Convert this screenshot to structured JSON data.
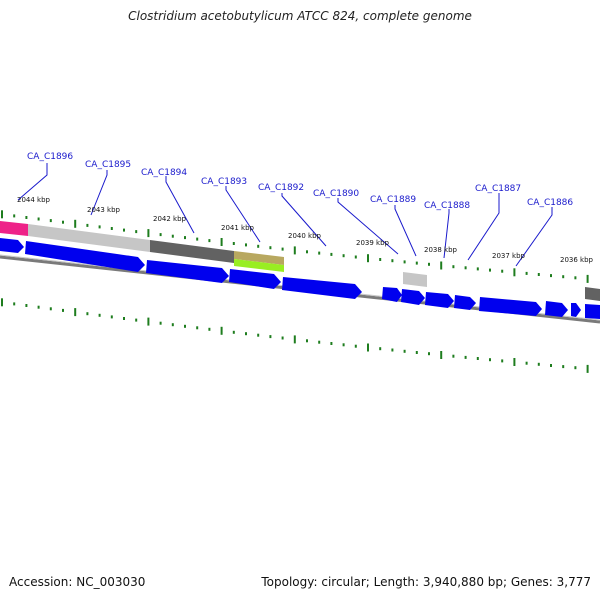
{
  "title": "Clostridium acetobutylicum ATCC 824, complete genome",
  "accession": "Accession: NC_003030",
  "summary": "Topology: circular; Length: 3,940,880 bp; Genes: 3,777",
  "kbp_labels": [
    "2044 kbp",
    "2043 kbp",
    "2042 kbp",
    "2041 kbp",
    "2040 kbp",
    "2039 kbp",
    "2038 kbp",
    "2037 kbp",
    "2036 kbp"
  ],
  "genes": [
    "CA_C1896",
    "CA_C1895",
    "CA_C1894",
    "CA_C1893",
    "CA_C1892",
    "CA_C1890",
    "CA_C1889",
    "CA_C1888",
    "CA_C1887",
    "CA_C1886"
  ],
  "colors": {
    "backbone": "#808080",
    "cds": "#0000ee",
    "tick": "#1e7d1e",
    "label": "#1a1acc",
    "magenta": "#ee2288",
    "light_gray": "#c8c8c8",
    "dark_gray": "#606060",
    "tan": "#b8a860",
    "lime": "#99ee22"
  }
}
